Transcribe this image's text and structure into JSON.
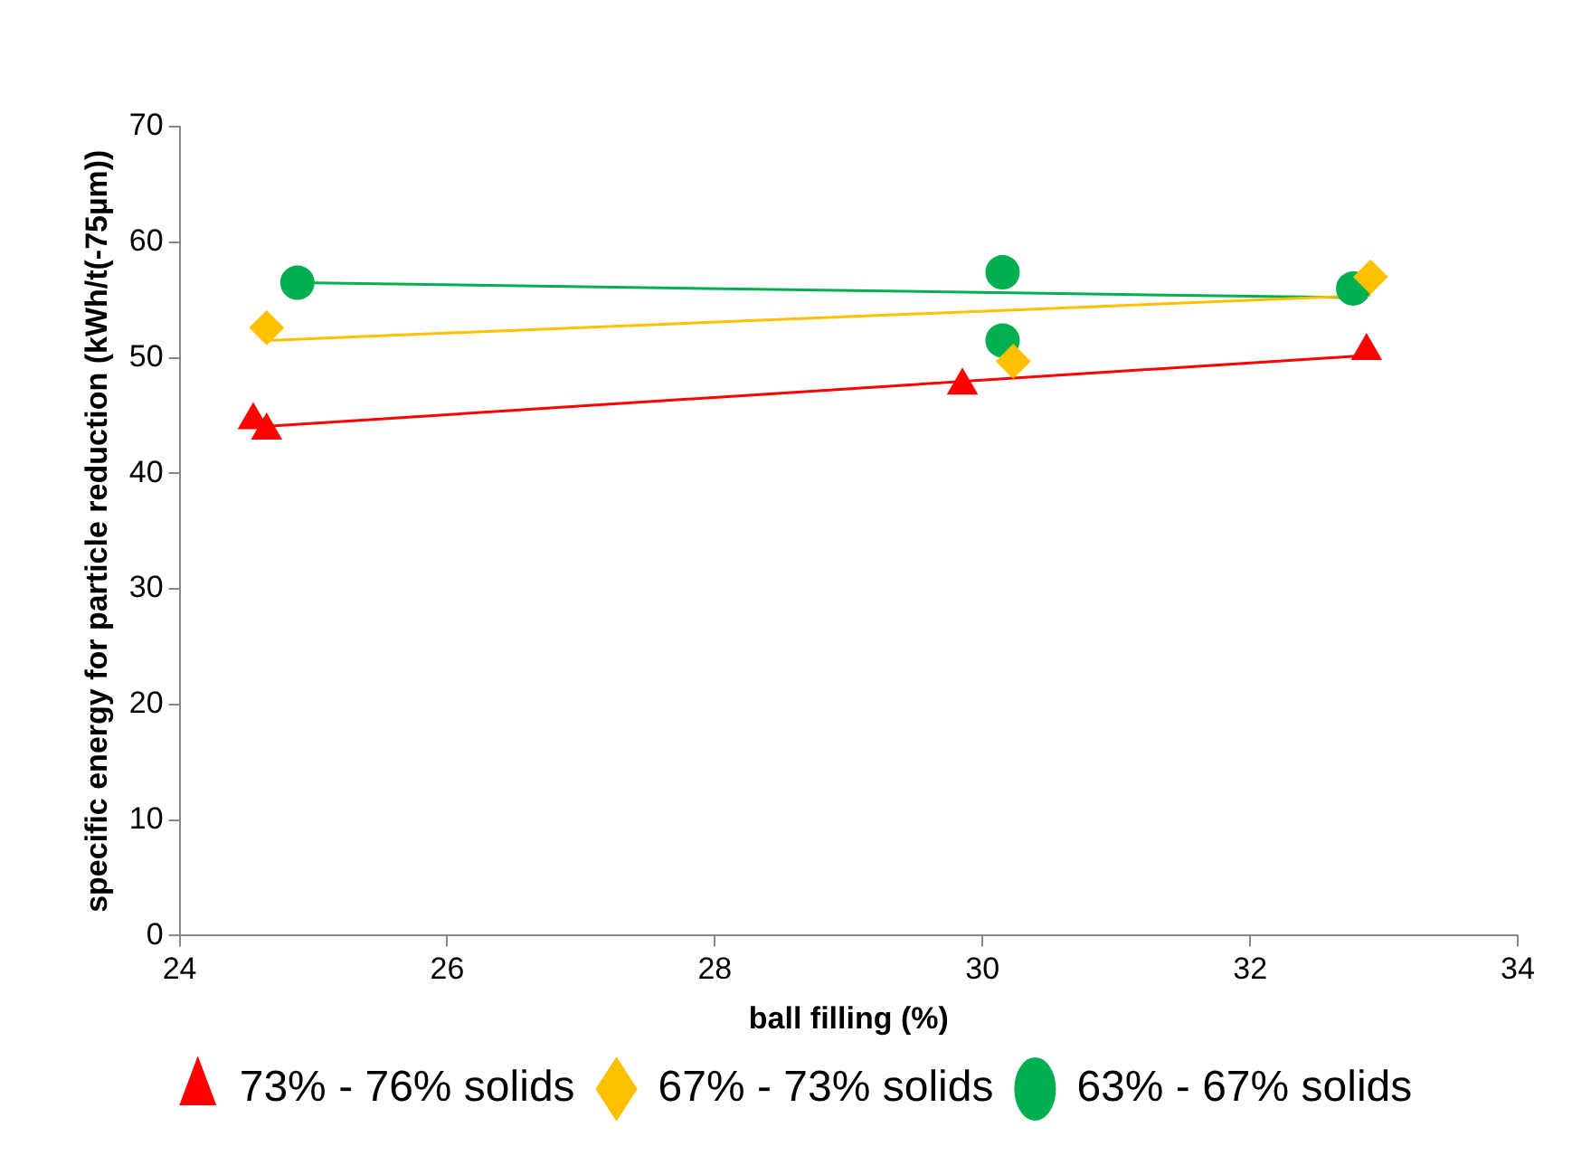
{
  "chart_data": {
    "type": "scatter",
    "xlabel": "ball filling (%)",
    "ylabel": "specific energy for particle reduction (kWh/t(-75µm))",
    "xlim": [
      24,
      34
    ],
    "xticks": [
      24,
      26,
      28,
      30,
      32,
      34
    ],
    "ylim": [
      0,
      70
    ],
    "yticks": [
      0,
      10,
      20,
      30,
      40,
      50,
      60,
      70
    ],
    "grid": false,
    "legend": "bottom",
    "series": [
      {
        "name": "73% - 76% solids",
        "color": "#ff0000",
        "marker": "triangle",
        "x": [
          24.55,
          24.65,
          29.85,
          32.87
        ],
        "values": [
          44.6,
          43.7,
          47.6,
          50.6
        ]
      },
      {
        "name": "67% - 73% solids",
        "color": "#ffc000",
        "marker": "diamond",
        "x": [
          24.65,
          30.23,
          32.9
        ],
        "values": [
          52.6,
          49.7,
          57
        ]
      },
      {
        "name": "63% - 67% solids",
        "color": "#00b050",
        "marker": "circle",
        "x": [
          24.88,
          30.15,
          30.15,
          32.77
        ],
        "values": [
          56.5,
          57.4,
          51.5,
          56
        ]
      },
      {
        "type": "line",
        "color": "#ff0000",
        "x": [
          24.55,
          32.87
        ],
        "values": [
          44.0,
          50.2
        ]
      },
      {
        "type": "line",
        "color": "#ffc000",
        "x": [
          24.65,
          32.9
        ],
        "values": [
          51.5,
          55.4
        ]
      },
      {
        "type": "line",
        "color": "#00b050",
        "x": [
          24.88,
          32.77
        ],
        "values": [
          56.5,
          55.2
        ]
      }
    ]
  }
}
